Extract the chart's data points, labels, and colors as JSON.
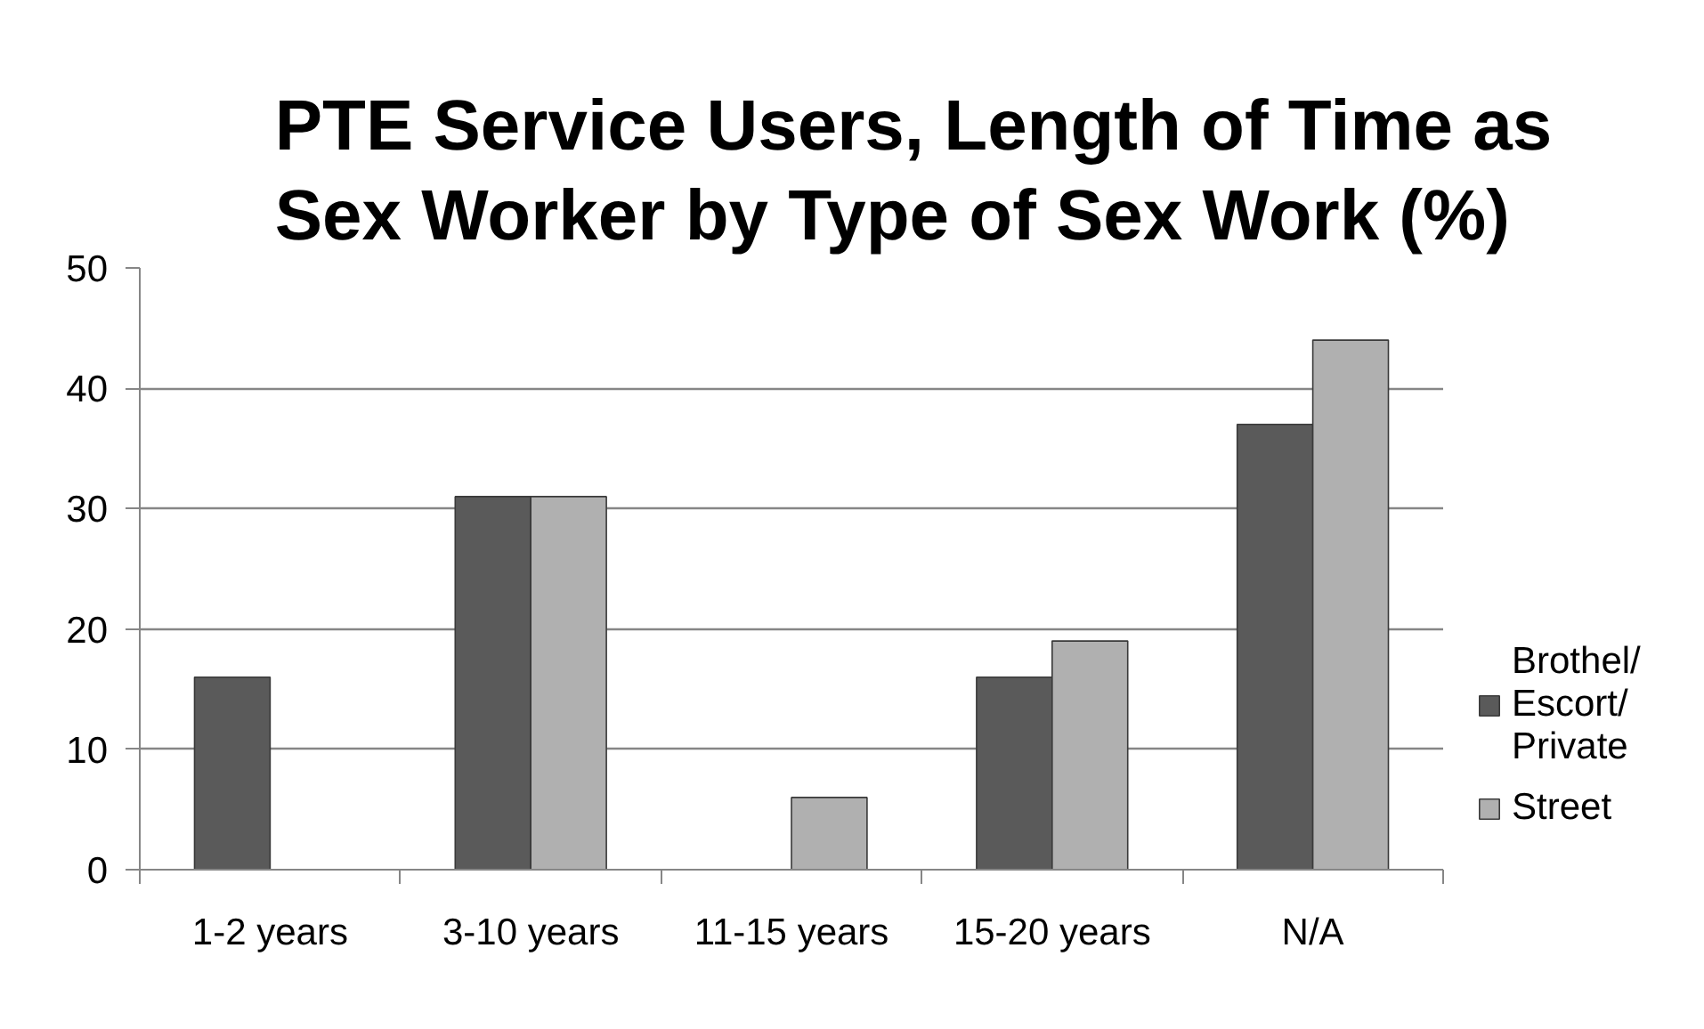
{
  "chart_data": {
    "type": "bar",
    "title": "PTE Service Users, Length of Time as Sex Worker by Type of Sex Work (%)",
    "categories": [
      "1-2 years",
      "3-10 years",
      "11-15 years",
      "15-20 years",
      "N/A"
    ],
    "series": [
      {
        "name": "Brothel/Escort/Private",
        "color": "#5a5a5a",
        "values": [
          16,
          31,
          null,
          16,
          37
        ]
      },
      {
        "name": "Street",
        "color": "#b0b0b0",
        "values": [
          null,
          31,
          6,
          19,
          44
        ]
      }
    ],
    "ylim": [
      0,
      50
    ],
    "yticks": [
      0,
      10,
      20,
      30,
      40,
      50
    ],
    "grid": "y",
    "legend": "right"
  }
}
